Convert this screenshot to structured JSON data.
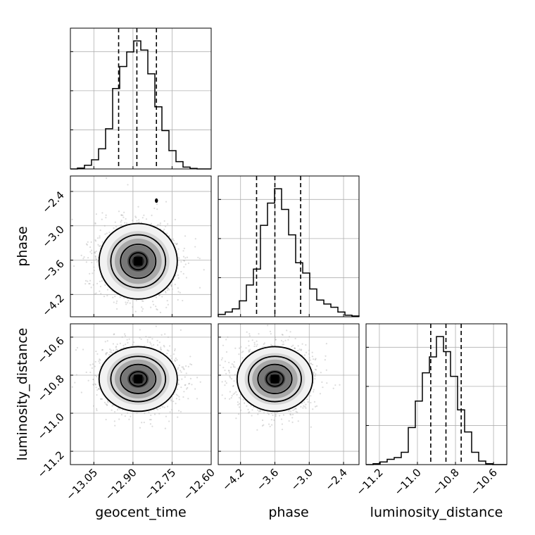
{
  "chart_data": {
    "type": "corner",
    "parameters": [
      {
        "key": "geocent_time",
        "label": "geocent_time",
        "range": [
          -13.14,
          -12.6
        ],
        "ticks": [
          -13.05,
          -12.9,
          -12.75,
          -12.6
        ],
        "tick_labels": [
          "−13.05",
          "−12.90",
          "−12.75",
          "−12.60"
        ]
      },
      {
        "key": "phase",
        "label": "phase",
        "range": [
          -4.59,
          -2.13
        ],
        "ticks": [
          -4.2,
          -3.6,
          -3.0,
          -2.4
        ],
        "tick_labels": [
          "−4.2",
          "−3.6",
          "−3.0",
          "−2.4"
        ]
      },
      {
        "key": "luminosity_distance",
        "label": "luminosity_distance",
        "range": [
          -11.27,
          -10.53
        ],
        "ticks": [
          -11.2,
          -11.0,
          -10.8,
          -10.6
        ],
        "tick_labels": [
          "−11.2",
          "−11.0",
          "−10.8",
          "−10.6"
        ]
      }
    ],
    "histograms": [
      {
        "param": "geocent_time",
        "bins": 20,
        "counts": [
          0,
          1,
          4,
          10,
          22,
          44,
          88,
          112,
          128,
          140,
          130,
          104,
          68,
          42,
          20,
          8,
          2,
          0.6,
          0,
          0
        ],
        "quantiles": [
          -12.955,
          -12.885,
          -12.81
        ]
      },
      {
        "param": "phase",
        "bins": 20,
        "counts": [
          3,
          6,
          10,
          20,
          40,
          60,
          115,
          143,
          161,
          135,
          103,
          68,
          55,
          35,
          21,
          16,
          12,
          6,
          2,
          1
        ],
        "quantiles": [
          -3.92,
          -3.6,
          -3.15
        ]
      },
      {
        "param": "luminosity_distance",
        "bins": 20,
        "counts": [
          0,
          1,
          3,
          6,
          8,
          14,
          42,
          72,
          104,
          122,
          145,
          128,
          100,
          62,
          37,
          14,
          4,
          1,
          0,
          0
        ],
        "quantiles": [
          -10.93,
          -10.85,
          -10.77
        ]
      }
    ],
    "joint": [
      {
        "x": "geocent_time",
        "y": "phase",
        "center": [
          -12.88,
          -3.62
        ],
        "std": [
          0.075,
          0.33
        ],
        "hotspot": [
          -12.81,
          -2.56
        ]
      },
      {
        "x": "geocent_time",
        "y": "luminosity_distance",
        "center": [
          -12.88,
          -10.82
        ],
        "std": [
          0.075,
          0.085
        ]
      },
      {
        "x": "phase",
        "y": "luminosity_distance",
        "center": [
          -3.6,
          -10.82
        ],
        "std": [
          0.33,
          0.085
        ]
      }
    ],
    "grid": true
  }
}
